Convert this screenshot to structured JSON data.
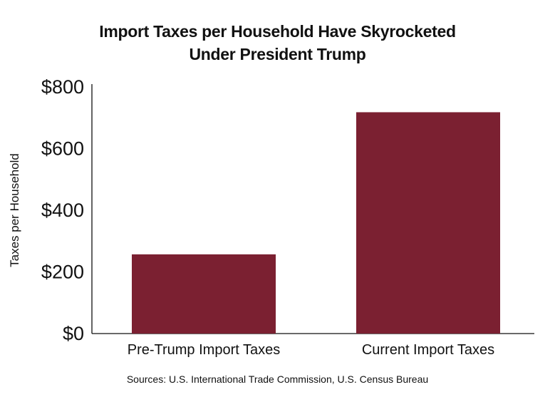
{
  "chart_data": {
    "type": "bar",
    "title_lines": [
      "Import Taxes per Household Have Skyrocketed",
      "Under President Trump"
    ],
    "categories": [
      "Pre-Trump Import Taxes",
      "Current Import Taxes"
    ],
    "values": [
      257,
      718
    ],
    "ylabel": "Taxes per Household",
    "xlabel": "",
    "ylim": [
      0,
      800
    ],
    "yticks": [
      0,
      200,
      400,
      600,
      800
    ],
    "ytick_labels": [
      "$0",
      "$200",
      "$400",
      "$600",
      "$800"
    ],
    "grid": false,
    "legend": "none",
    "bar_color": "#7b2031",
    "source": "Sources: U.S. International Trade Commission, U.S. Census Bureau"
  }
}
